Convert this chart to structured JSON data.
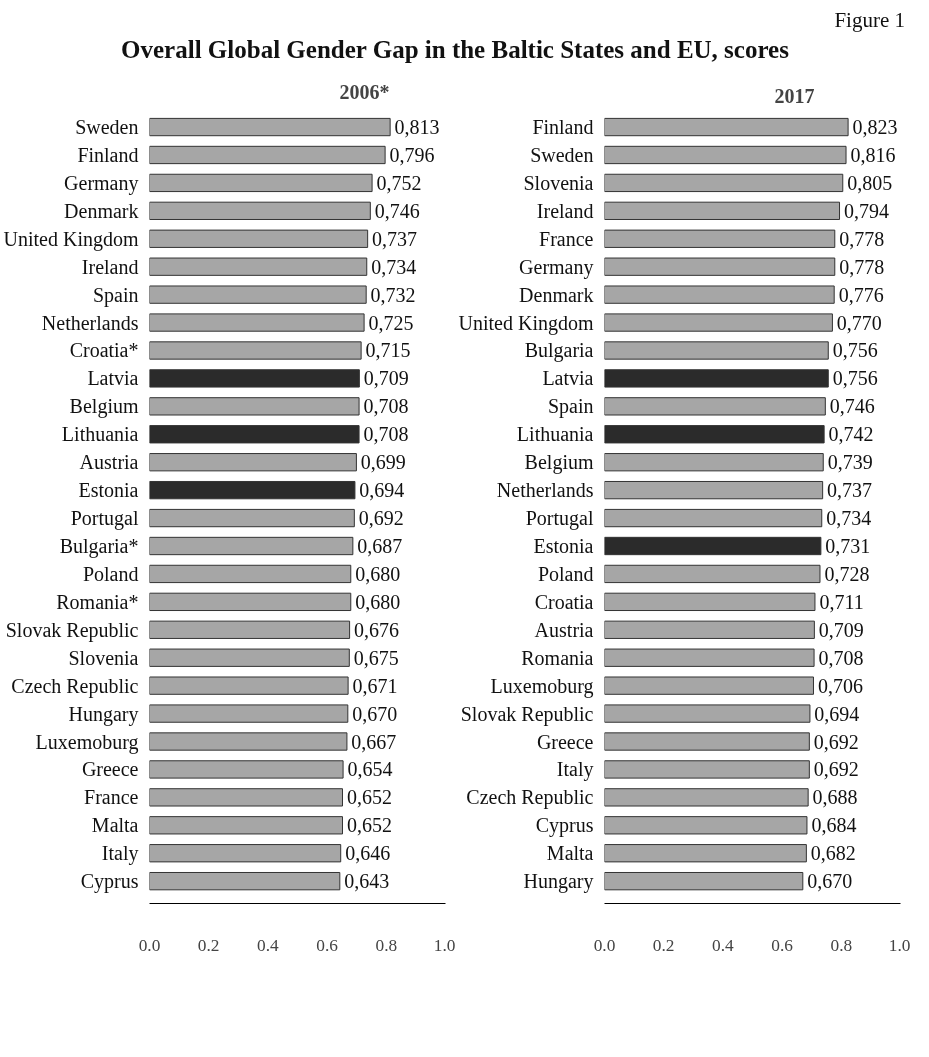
{
  "chart_data": [
    {
      "type": "bar",
      "orientation": "horizontal",
      "title": "Overall Global Gender Gap in the Baltic States and EU, scores",
      "annotations": [
        "Figure 1"
      ],
      "subtitle": "2006*",
      "grid": false,
      "categories": [
        "Sweden",
        "Finland",
        "Germany",
        "Denmark",
        "United Kingdom",
        "Ireland",
        "Spain",
        "Netherlands",
        "Croatia*",
        "Latvia",
        "Belgium",
        "Lithuania",
        "Austria",
        "Estonia",
        "Portugal",
        "Bulgaria*",
        "Poland",
        "Romania*",
        "Slovak Republic",
        "Slovenia",
        "Czech Republic",
        "Hungary",
        "Luxemoburg",
        "Greece",
        "France",
        "Malta",
        "Italy",
        "Cyprus"
      ],
      "values": [
        0.813,
        0.796,
        0.752,
        0.746,
        0.737,
        0.734,
        0.732,
        0.725,
        0.715,
        0.709,
        0.708,
        0.708,
        0.699,
        0.694,
        0.692,
        0.687,
        0.68,
        0.68,
        0.676,
        0.675,
        0.671,
        0.67,
        0.667,
        0.654,
        0.652,
        0.652,
        0.646,
        0.643
      ],
      "value_labels": [
        "0,813",
        "0,796",
        "0,752",
        "0,746",
        "0,737",
        "0,734",
        "0,732",
        "0,725",
        "0,715",
        "0,709",
        "0,708",
        "0,708",
        "0,699",
        "0,694",
        "0,692",
        "0,687",
        "0,680",
        "0,680",
        "0,676",
        "0,675",
        "0,671",
        "0,670",
        "0,667",
        "0,654",
        "0,652",
        "0,652",
        "0,646",
        "0,643"
      ],
      "colors": [
        "#a6a6a6",
        "#a6a6a6",
        "#a6a6a6",
        "#a6a6a6",
        "#a6a6a6",
        "#a6a6a6",
        "#a6a6a6",
        "#a6a6a6",
        "#a6a6a6",
        "#2b2b2b",
        "#a6a6a6",
        "#2b2b2b",
        "#a6a6a6",
        "#2b2b2b",
        "#a6a6a6",
        "#a6a6a6",
        "#a6a6a6",
        "#a6a6a6",
        "#a6a6a6",
        "#a6a6a6",
        "#a6a6a6",
        "#a6a6a6",
        "#a6a6a6",
        "#a6a6a6",
        "#a6a6a6",
        "#a6a6a6",
        "#a6a6a6",
        "#a6a6a6"
      ],
      "xlim": [
        0,
        1
      ],
      "xticks": [
        {
          "value": 0,
          "label": "0.0"
        },
        {
          "value": 0.2,
          "label": "0.2"
        },
        {
          "value": 0.4,
          "label": "0.4"
        },
        {
          "value": 0.6,
          "label": "0.6"
        },
        {
          "value": 0.8,
          "label": "0.8"
        },
        {
          "value": 1,
          "label": "1.0"
        }
      ]
    },
    {
      "type": "bar",
      "orientation": "horizontal",
      "subtitle": "2017",
      "grid": false,
      "categories": [
        "Finland",
        "Sweden",
        "Slovenia",
        "Ireland",
        "France",
        "Germany",
        "Denmark",
        "United Kingdom",
        "Bulgaria",
        "Latvia",
        "Spain",
        "Lithuania",
        "Belgium",
        "Netherlands",
        "Portugal",
        "Estonia",
        "Poland",
        "Croatia",
        "Austria",
        "Romania",
        "Luxemoburg",
        "Slovak Republic",
        "Greece",
        "Italy",
        "Czech Republic",
        "Cyprus",
        "Malta",
        "Hungary"
      ],
      "values": [
        0.823,
        0.816,
        0.805,
        0.794,
        0.778,
        0.778,
        0.776,
        0.77,
        0.756,
        0.756,
        0.746,
        0.742,
        0.739,
        0.737,
        0.734,
        0.731,
        0.728,
        0.711,
        0.709,
        0.708,
        0.706,
        0.694,
        0.692,
        0.692,
        0.688,
        0.684,
        0.682,
        0.67
      ],
      "value_labels": [
        "0,823",
        "0,816",
        "0,805",
        "0,794",
        "0,778",
        "0,778",
        "0,776",
        "0,770",
        "0,756",
        "0,756",
        "0,746",
        "0,742",
        "0,739",
        "0,737",
        "0,734",
        "0,731",
        "0,728",
        "0,711",
        "0,709",
        "0,708",
        "0,706",
        "0,694",
        "0,692",
        "0,692",
        "0,688",
        "0,684",
        "0,682",
        "0,670"
      ],
      "colors": [
        "#a6a6a6",
        "#a6a6a6",
        "#a6a6a6",
        "#a6a6a6",
        "#a6a6a6",
        "#a6a6a6",
        "#a6a6a6",
        "#a6a6a6",
        "#a6a6a6",
        "#2b2b2b",
        "#a6a6a6",
        "#2b2b2b",
        "#a6a6a6",
        "#a6a6a6",
        "#a6a6a6",
        "#2b2b2b",
        "#a6a6a6",
        "#a6a6a6",
        "#a6a6a6",
        "#a6a6a6",
        "#a6a6a6",
        "#a6a6a6",
        "#a6a6a6",
        "#a6a6a6",
        "#a6a6a6",
        "#a6a6a6",
        "#a6a6a6",
        "#a6a6a6"
      ],
      "xlim": [
        0,
        1
      ],
      "xticks": [
        {
          "value": 0,
          "label": "0.0"
        },
        {
          "value": 0.2,
          "label": "0.2"
        },
        {
          "value": 0.4,
          "label": "0.4"
        },
        {
          "value": 0.6,
          "label": "0.6"
        },
        {
          "value": 0.8,
          "label": "0.8"
        },
        {
          "value": 1,
          "label": "1.0"
        }
      ]
    }
  ]
}
